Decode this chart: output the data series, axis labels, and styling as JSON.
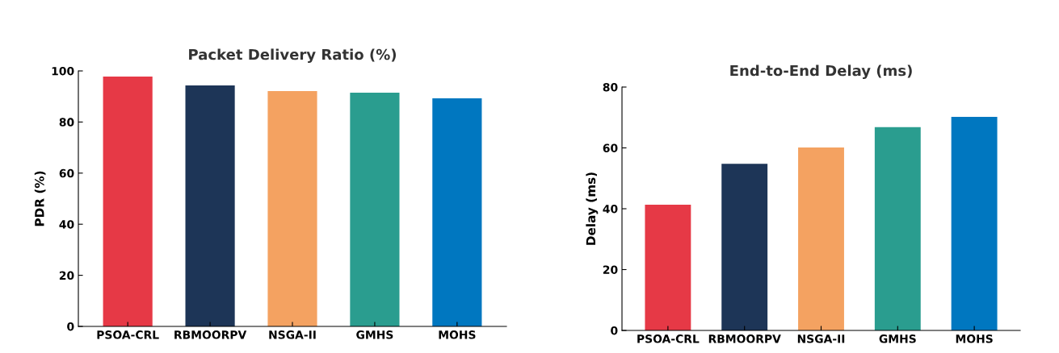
{
  "chart_data": [
    {
      "type": "bar",
      "title": "Packet Delivery Ratio (%)",
      "ylabel": "PDR (%)",
      "categories": [
        "PSOA-CRL",
        "RBMOORPV",
        "NSGA-II",
        "GMHS",
        "MOHS"
      ],
      "values": [
        97.8,
        94.3,
        92.1,
        91.5,
        89.3
      ],
      "colors": [
        "#e63946",
        "#1d3557",
        "#f4a261",
        "#2a9d8f",
        "#0077c0"
      ],
      "ylim": [
        0,
        100
      ],
      "yticks": [
        0,
        20,
        40,
        60,
        80,
        100
      ],
      "grid": false,
      "legend": false
    },
    {
      "type": "bar",
      "title": "End-to-End Delay (ms)",
      "ylabel": "Delay (ms)",
      "categories": [
        "PSOA-CRL",
        "RBMOORPV",
        "NSGA-II",
        "GMHS",
        "MOHS"
      ],
      "values": [
        41.3,
        54.8,
        60.1,
        66.8,
        70.2
      ],
      "colors": [
        "#e63946",
        "#1d3557",
        "#f4a261",
        "#2a9d8f",
        "#0077c0"
      ],
      "ylim": [
        0,
        80
      ],
      "yticks": [
        0,
        20,
        40,
        60,
        80
      ],
      "grid": false,
      "legend": false
    }
  ]
}
